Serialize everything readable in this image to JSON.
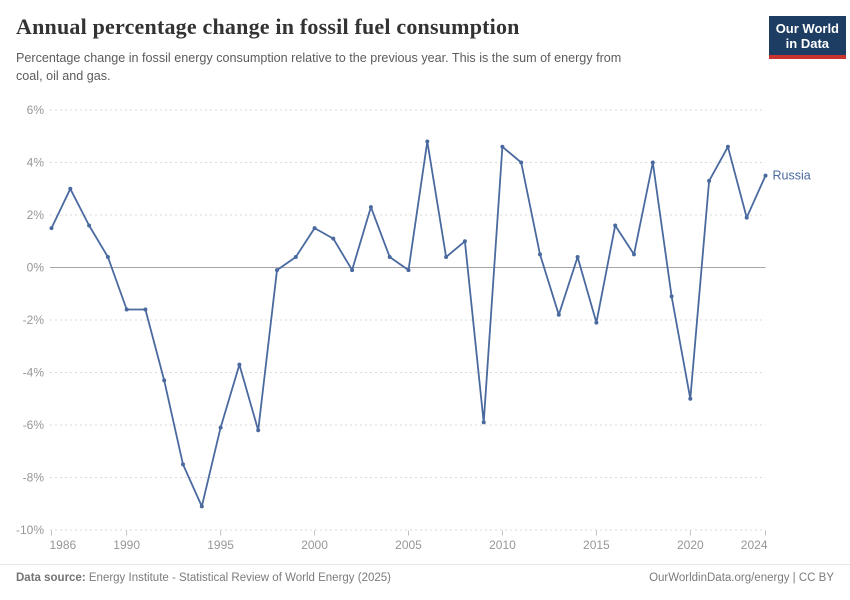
{
  "header": {
    "title": "Annual percentage change in fossil fuel consumption",
    "subtitle_line1": "Percentage change in fossil energy consumption relative to the previous year. This is the sum of energy from",
    "subtitle_line2": "coal, oil and gas.",
    "logo_line1": "Our World",
    "logo_line2": "in Data"
  },
  "chart_data": {
    "type": "line",
    "title": "Annual percentage change in fossil fuel consumption",
    "x": [
      1986,
      1987,
      1988,
      1989,
      1990,
      1991,
      1992,
      1993,
      1994,
      1995,
      1996,
      1997,
      1998,
      1999,
      2000,
      2001,
      2002,
      2003,
      2004,
      2005,
      2006,
      2007,
      2008,
      2009,
      2010,
      2011,
      2012,
      2013,
      2014,
      2015,
      2016,
      2017,
      2018,
      2019,
      2020,
      2021,
      2022,
      2023,
      2024
    ],
    "series": [
      {
        "name": "Russia",
        "color": "#4a6a9f",
        "values": [
          1.5,
          3.0,
          1.6,
          0.4,
          -1.6,
          -1.6,
          -4.3,
          -7.5,
          -9.1,
          -6.1,
          -3.7,
          -6.2,
          -0.1,
          0.4,
          1.5,
          1.1,
          -0.1,
          2.3,
          0.4,
          -0.1,
          4.8,
          0.4,
          1.0,
          -5.9,
          4.6,
          4.0,
          0.5,
          -1.8,
          0.4,
          -2.1,
          1.6,
          0.5,
          4.0,
          -1.1,
          -5.0,
          3.3,
          4.6,
          1.9,
          3.5
        ]
      }
    ],
    "xlabel": "",
    "ylabel": "",
    "ylim": [
      -10,
      6
    ],
    "y_ticks": [
      6,
      4,
      2,
      0,
      -2,
      -4,
      -6,
      -8,
      -10
    ],
    "y_tick_labels": [
      "6%",
      "4%",
      "2%",
      "0%",
      "-2%",
      "-4%",
      "-6%",
      "-8%",
      "-10%"
    ],
    "x_ticks": [
      1986,
      1990,
      1995,
      2000,
      2005,
      2010,
      2015,
      2020,
      2024
    ],
    "x_tick_labels": [
      "1986",
      "1990",
      "1995",
      "2000",
      "2005",
      "2010",
      "2015",
      "2020",
      "2024"
    ],
    "grid": "horizontal dashed, zero line solid",
    "legend_position": "label at end of line"
  },
  "footer": {
    "datasource_label": "Data source:",
    "datasource_text": "Energy Institute - Statistical Review of World Energy (2025)",
    "attribution": "OurWorldinData.org/energy | CC BY"
  },
  "colors": {
    "line": "#4a6a9f",
    "title_text": "#333333",
    "subtitle_text": "#5c5c5c",
    "axis_label": "#979797",
    "gridline": "#dadada",
    "zero_line": "#a6a6a6",
    "tick_mark": "#c2c2c2",
    "logo_bg": "#1d3d63",
    "logo_accent": "#cb342e",
    "footer_text": "#7c7c7c",
    "background": "#ffffff"
  }
}
